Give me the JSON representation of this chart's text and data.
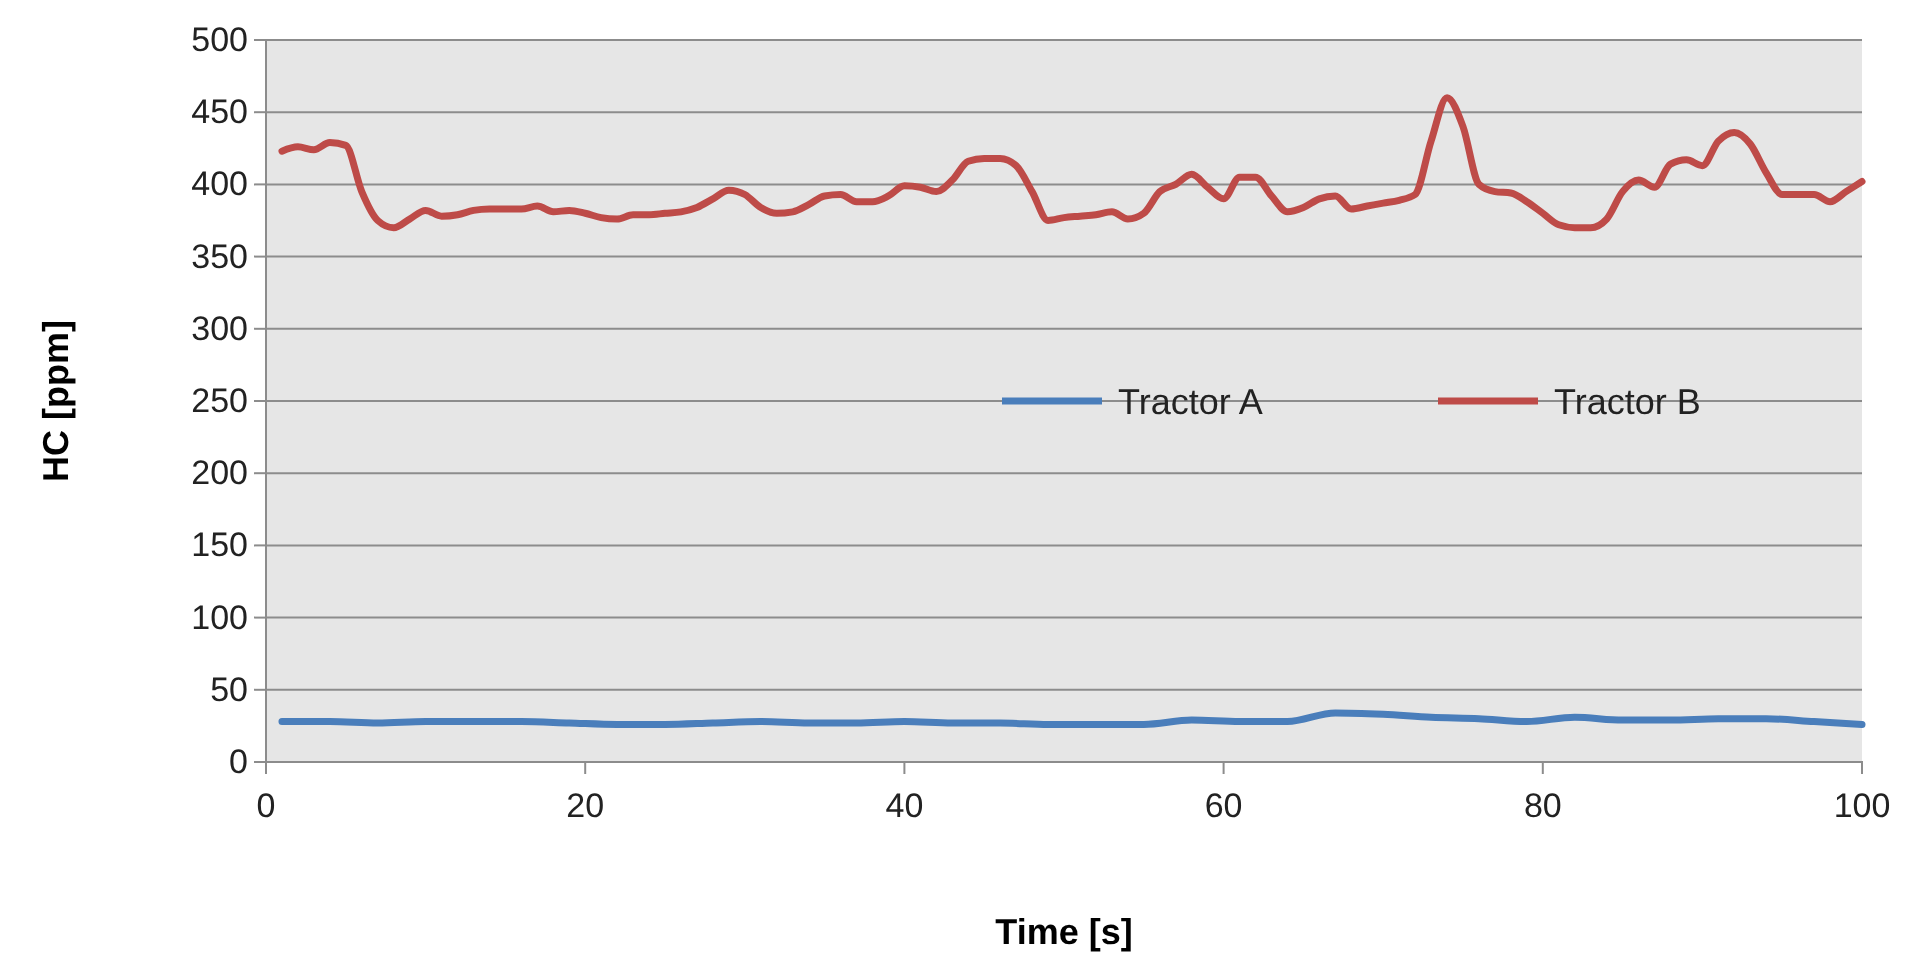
{
  "chart_data": {
    "type": "line",
    "xlabel": "Time [s]",
    "ylabel": "HC [ppm]",
    "xlim": [
      0,
      100
    ],
    "xticks": [
      0,
      20,
      40,
      60,
      80,
      100
    ],
    "ylim": [
      0,
      500
    ],
    "yticks": [
      0,
      50,
      100,
      150,
      200,
      250,
      300,
      350,
      400,
      450,
      500
    ],
    "grid": "y",
    "legend": "right",
    "marker": "none",
    "line_style": "solid",
    "series": [
      {
        "name": "Tractor A",
        "color": "#4a7ebb",
        "x": [
          1,
          4,
          7,
          10,
          13,
          16,
          19,
          22,
          25,
          28,
          31,
          34,
          37,
          40,
          43,
          46,
          49,
          52,
          55,
          58,
          61,
          64,
          67,
          70,
          73,
          76,
          79,
          82,
          85,
          88,
          91,
          94,
          97,
          100
        ],
        "values": [
          28,
          28,
          27,
          28,
          28,
          28,
          27,
          26,
          26,
          27,
          28,
          27,
          27,
          28,
          27,
          27,
          26,
          26,
          26,
          29,
          28,
          28,
          34,
          33,
          31,
          30,
          28,
          31,
          29,
          29,
          30,
          30,
          28,
          26
        ]
      },
      {
        "name": "Tractor B",
        "color": "#be4b48",
        "x": [
          1,
          2,
          3,
          4,
          5,
          6,
          7,
          8,
          9,
          10,
          11,
          12,
          13,
          14,
          15,
          16,
          17,
          18,
          19,
          20,
          21,
          22,
          23,
          24,
          25,
          26,
          27,
          28,
          29,
          30,
          31,
          32,
          33,
          34,
          35,
          36,
          37,
          38,
          39,
          40,
          41,
          42,
          43,
          44,
          45,
          46,
          47,
          48,
          49,
          50,
          51,
          52,
          53,
          54,
          55,
          56,
          57,
          58,
          59,
          60,
          61,
          62,
          63,
          64,
          65,
          66,
          67,
          68,
          69,
          70,
          71,
          72,
          73,
          74,
          75,
          76,
          77,
          78,
          79,
          80,
          81,
          82,
          83,
          84,
          85,
          86,
          87,
          88,
          89,
          90,
          91,
          92,
          93,
          94,
          95,
          96,
          97,
          98,
          99,
          100
        ],
        "values": [
          423,
          426,
          424,
          429,
          427,
          395,
          375,
          370,
          376,
          382,
          378,
          379,
          382,
          383,
          383,
          383,
          385,
          381,
          382,
          380,
          377,
          376,
          379,
          379,
          380,
          381,
          384,
          390,
          396,
          393,
          384,
          380,
          381,
          386,
          392,
          393,
          388,
          388,
          392,
          399,
          398,
          395,
          403,
          416,
          418,
          418,
          413,
          395,
          375,
          377,
          378,
          379,
          381,
          376,
          380,
          395,
          400,
          407,
          398,
          390,
          405,
          405,
          392,
          381,
          384,
          390,
          392,
          383,
          385,
          387,
          389,
          393,
          430,
          460,
          440,
          400,
          395,
          394,
          388,
          380,
          372,
          370,
          370,
          376,
          395,
          403,
          398,
          414,
          417,
          413,
          430,
          436,
          428,
          408,
          393,
          393,
          393,
          388,
          395,
          402
        ]
      }
    ]
  }
}
